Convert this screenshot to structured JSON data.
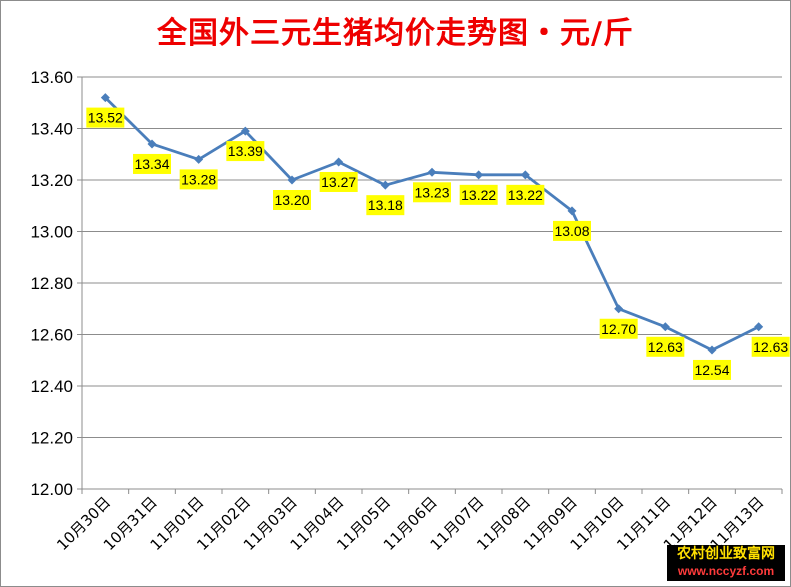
{
  "chart_data": {
    "type": "line",
    "title": "全国外三元生猪均价走势图・元/斤",
    "xlabel": "",
    "ylabel": "",
    "categories": [
      "10月30日",
      "10月31日",
      "11月01日",
      "11月02日",
      "11月03日",
      "11月04日",
      "11月05日",
      "11月06日",
      "11月07日",
      "11月08日",
      "11月09日",
      "11月10日",
      "11月11日",
      "11月12日",
      "11月13日"
    ],
    "series": [
      {
        "values": [
          13.52,
          13.34,
          13.28,
          13.39,
          13.2,
          13.27,
          13.18,
          13.23,
          13.22,
          13.22,
          13.08,
          12.7,
          12.63,
          12.54,
          12.63
        ]
      }
    ],
    "data_labels": [
      "13.52",
      "13.34",
      "13.28",
      "13.39",
      "13.20",
      "13.27",
      "13.18",
      "13.23",
      "13.22",
      "13.22",
      "13.08",
      "12.70",
      "12.63",
      "12.54",
      "12.63"
    ],
    "yticks": [
      "12.00",
      "12.20",
      "12.40",
      "12.60",
      "12.80",
      "13.00",
      "13.20",
      "13.40",
      "13.60"
    ],
    "ylim": [
      12.0,
      13.6
    ],
    "grid": true,
    "legend": "none",
    "colors": {
      "line": "#4a7ebb",
      "marker": "#4a7ebb",
      "label_bg": "#ffff00",
      "title": "#ee0000",
      "grid": "#8c8c8c"
    }
  },
  "watermark": {
    "line1": "农村创业致富网",
    "line2": "www.nccyzf.com"
  }
}
